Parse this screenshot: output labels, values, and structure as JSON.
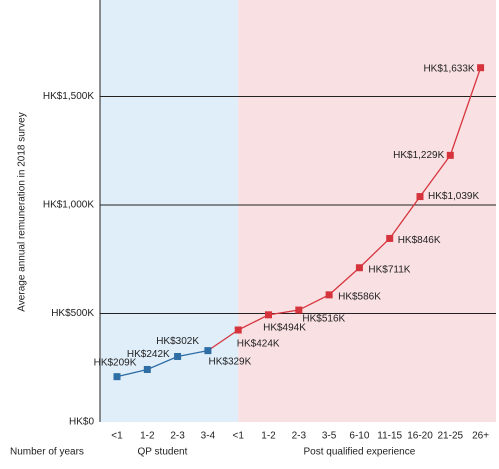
{
  "chart_data": {
    "type": "line",
    "y_label": "Average annual remuneration in 2018 survey",
    "x_label": "Number of years",
    "categories": [
      "<1",
      "1-2",
      "2-3",
      "3-4",
      "<1",
      "1-2",
      "2-3",
      "3-5",
      "6-10",
      "11-15",
      "16-20",
      "21-25",
      "26+"
    ],
    "series": [
      {
        "name": "QP student",
        "color": "#2f6ea5",
        "shade": "#dfeef9",
        "values": [
          209,
          242,
          302,
          329,
          null,
          null,
          null,
          null,
          null,
          null,
          null,
          null,
          null
        ],
        "value_labels": [
          "HK$209K",
          "HK$242K",
          "HK$302K",
          "HK$329K",
          null,
          null,
          null,
          null,
          null,
          null,
          null,
          null,
          null
        ]
      },
      {
        "name": "Post qualified experience",
        "color": "#d6343d",
        "shade": "#f9e0e3",
        "values": [
          null,
          null,
          null,
          null,
          424,
          494,
          516,
          586,
          711,
          846,
          1039,
          1229,
          1633
        ],
        "value_labels": [
          null,
          null,
          null,
          null,
          "HK$424K",
          "HK$494K",
          "HK$516K",
          "HK$586K",
          "HK$711K",
          "HK$846K",
          "HK$1,039K",
          "HK$1,229K",
          "HK$1,633K"
        ]
      }
    ],
    "ylim": [
      0,
      1945
    ],
    "yticks": [
      {
        "value": 0,
        "label": "HK$0"
      },
      {
        "value": 500,
        "label": "HK$500K"
      },
      {
        "value": 1000,
        "label": "HK$1,000K"
      },
      {
        "value": 1500,
        "label": "HK$1,500K"
      }
    ],
    "grid": true
  }
}
